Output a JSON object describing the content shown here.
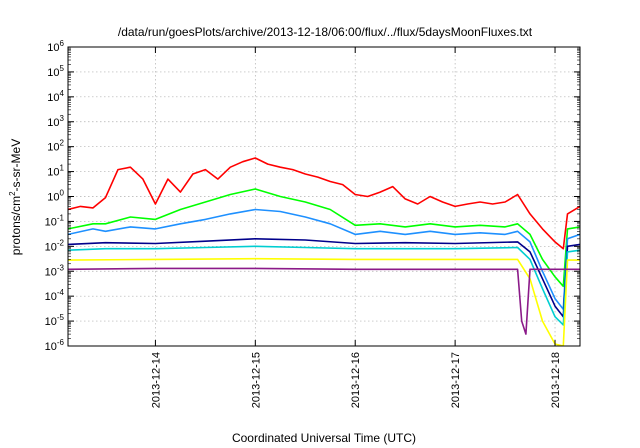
{
  "chart_data": {
    "type": "line",
    "title": "/data/run/goesPlots/archive/2013-12-18/06:00/flux/../flux/5daysMoonFluxes.txt",
    "xlabel": "Coordinated Universal Time (UTC)",
    "ylabel_base": "protons/cm",
    "ylabel_sup": "2",
    "ylabel_tail": "-s-sr-MeV",
    "xlim": [
      "2013-12-13T03:00",
      "2013-12-18T06:00"
    ],
    "x_ticks": [
      "2013-12-14",
      "2013-12-15",
      "2013-12-16",
      "2013-12-17",
      "2013-12-18"
    ],
    "ylog": true,
    "ylim": [
      1e-06,
      1000000.0
    ],
    "y_tick_exponents": [
      -6,
      -5,
      -4,
      -3,
      -2,
      -1,
      0,
      1,
      2,
      3,
      4,
      5,
      6
    ],
    "y_tick_base": "10",
    "grid": true,
    "series": [
      {
        "color": "#ff0000",
        "points": [
          [
            "2013-12-13T03:00",
            0.3
          ],
          [
            "2013-12-13T06:00",
            0.4
          ],
          [
            "2013-12-13T09:00",
            0.35
          ],
          [
            "2013-12-13T12:00",
            0.9
          ],
          [
            "2013-12-13T15:00",
            12
          ],
          [
            "2013-12-13T18:00",
            15
          ],
          [
            "2013-12-13T21:00",
            5
          ],
          [
            "2013-12-14T00:00",
            0.5
          ],
          [
            "2013-12-14T03:00",
            5
          ],
          [
            "2013-12-14T06:00",
            1.5
          ],
          [
            "2013-12-14T09:00",
            8
          ],
          [
            "2013-12-14T12:00",
            12
          ],
          [
            "2013-12-14T15:00",
            5
          ],
          [
            "2013-12-14T18:00",
            15
          ],
          [
            "2013-12-14T21:00",
            25
          ],
          [
            "2013-12-15T00:00",
            35
          ],
          [
            "2013-12-15T03:00",
            20
          ],
          [
            "2013-12-15T06:00",
            15
          ],
          [
            "2013-12-15T09:00",
            12
          ],
          [
            "2013-12-15T12:00",
            8
          ],
          [
            "2013-12-15T15:00",
            6
          ],
          [
            "2013-12-15T18:00",
            4
          ],
          [
            "2013-12-15T21:00",
            3
          ],
          [
            "2013-12-16T00:00",
            1.2
          ],
          [
            "2013-12-16T03:00",
            1.0
          ],
          [
            "2013-12-16T06:00",
            1.5
          ],
          [
            "2013-12-16T09:00",
            2.5
          ],
          [
            "2013-12-16T12:00",
            0.8
          ],
          [
            "2013-12-16T15:00",
            0.5
          ],
          [
            "2013-12-16T18:00",
            1.0
          ],
          [
            "2013-12-16T21:00",
            0.6
          ],
          [
            "2013-12-17T00:00",
            0.4
          ],
          [
            "2013-12-17T03:00",
            0.5
          ],
          [
            "2013-12-17T06:00",
            0.6
          ],
          [
            "2013-12-17T09:00",
            0.5
          ],
          [
            "2013-12-17T12:00",
            0.6
          ],
          [
            "2013-12-17T15:00",
            1.2
          ],
          [
            "2013-12-17T18:00",
            0.2
          ],
          [
            "2013-12-17T21:00",
            0.05
          ],
          [
            "2013-12-18T00:00",
            0.015
          ],
          [
            "2013-12-18T02:00",
            0.008
          ],
          [
            "2013-12-18T03:00",
            0.2
          ],
          [
            "2013-12-18T06:00",
            0.4
          ]
        ]
      },
      {
        "color": "#00ff00",
        "points": [
          [
            "2013-12-13T03:00",
            0.05
          ],
          [
            "2013-12-13T09:00",
            0.08
          ],
          [
            "2013-12-13T12:00",
            0.08
          ],
          [
            "2013-12-13T18:00",
            0.15
          ],
          [
            "2013-12-14T00:00",
            0.12
          ],
          [
            "2013-12-14T06:00",
            0.3
          ],
          [
            "2013-12-14T12:00",
            0.6
          ],
          [
            "2013-12-14T18:00",
            1.2
          ],
          [
            "2013-12-15T00:00",
            2
          ],
          [
            "2013-12-15T06:00",
            1.0
          ],
          [
            "2013-12-15T12:00",
            0.6
          ],
          [
            "2013-12-15T18:00",
            0.3
          ],
          [
            "2013-12-16T00:00",
            0.07
          ],
          [
            "2013-12-16T06:00",
            0.08
          ],
          [
            "2013-12-16T12:00",
            0.06
          ],
          [
            "2013-12-16T18:00",
            0.08
          ],
          [
            "2013-12-17T00:00",
            0.06
          ],
          [
            "2013-12-17T06:00",
            0.07
          ],
          [
            "2013-12-17T12:00",
            0.06
          ],
          [
            "2013-12-17T15:00",
            0.08
          ],
          [
            "2013-12-17T18:00",
            0.03
          ],
          [
            "2013-12-17T21:00",
            0.003
          ],
          [
            "2013-12-18T00:00",
            0.0006
          ],
          [
            "2013-12-18T02:00",
            0.00025
          ],
          [
            "2013-12-18T03:00",
            0.05
          ],
          [
            "2013-12-18T06:00",
            0.06
          ]
        ]
      },
      {
        "color": "#1e90ff",
        "points": [
          [
            "2013-12-13T03:00",
            0.03
          ],
          [
            "2013-12-13T09:00",
            0.05
          ],
          [
            "2013-12-13T12:00",
            0.04
          ],
          [
            "2013-12-13T18:00",
            0.06
          ],
          [
            "2013-12-14T00:00",
            0.05
          ],
          [
            "2013-12-14T06:00",
            0.08
          ],
          [
            "2013-12-14T12:00",
            0.12
          ],
          [
            "2013-12-14T18:00",
            0.2
          ],
          [
            "2013-12-15T00:00",
            0.3
          ],
          [
            "2013-12-15T06:00",
            0.25
          ],
          [
            "2013-12-15T12:00",
            0.15
          ],
          [
            "2013-12-15T18:00",
            0.08
          ],
          [
            "2013-12-16T00:00",
            0.03
          ],
          [
            "2013-12-16T06:00",
            0.04
          ],
          [
            "2013-12-16T12:00",
            0.03
          ],
          [
            "2013-12-16T18:00",
            0.04
          ],
          [
            "2013-12-17T00:00",
            0.03
          ],
          [
            "2013-12-17T06:00",
            0.035
          ],
          [
            "2013-12-17T12:00",
            0.03
          ],
          [
            "2013-12-17T15:00",
            0.04
          ],
          [
            "2013-12-17T18:00",
            0.015
          ],
          [
            "2013-12-17T21:00",
            0.001
          ],
          [
            "2013-12-18T00:00",
            8e-05
          ],
          [
            "2013-12-18T02:00",
            3e-05
          ],
          [
            "2013-12-18T03:00",
            0.02
          ],
          [
            "2013-12-18T06:00",
            0.03
          ]
        ]
      },
      {
        "color": "#00008b",
        "points": [
          [
            "2013-12-13T03:00",
            0.012
          ],
          [
            "2013-12-13T12:00",
            0.014
          ],
          [
            "2013-12-14T00:00",
            0.013
          ],
          [
            "2013-12-14T12:00",
            0.016
          ],
          [
            "2013-12-15T00:00",
            0.02
          ],
          [
            "2013-12-15T12:00",
            0.018
          ],
          [
            "2013-12-16T00:00",
            0.013
          ],
          [
            "2013-12-16T12:00",
            0.014
          ],
          [
            "2013-12-17T00:00",
            0.013
          ],
          [
            "2013-12-17T15:00",
            0.015
          ],
          [
            "2013-12-17T18:00",
            0.006
          ],
          [
            "2013-12-17T21:00",
            0.0005
          ],
          [
            "2013-12-18T00:00",
            4e-05
          ],
          [
            "2013-12-18T02:00",
            1.5e-05
          ],
          [
            "2013-12-18T03:00",
            0.01
          ],
          [
            "2013-12-18T06:00",
            0.012
          ]
        ]
      },
      {
        "color": "#00ced1",
        "points": [
          [
            "2013-12-13T03:00",
            0.007
          ],
          [
            "2013-12-13T12:00",
            0.008
          ],
          [
            "2013-12-14T00:00",
            0.008
          ],
          [
            "2013-12-14T12:00",
            0.009
          ],
          [
            "2013-12-15T00:00",
            0.01
          ],
          [
            "2013-12-15T12:00",
            0.009
          ],
          [
            "2013-12-16T00:00",
            0.008
          ],
          [
            "2013-12-16T12:00",
            0.008
          ],
          [
            "2013-12-17T00:00",
            0.008
          ],
          [
            "2013-12-17T15:00",
            0.009
          ],
          [
            "2013-12-17T18:00",
            0.003
          ],
          [
            "2013-12-17T21:00",
            0.0002
          ],
          [
            "2013-12-18T00:00",
            1.5e-05
          ],
          [
            "2013-12-18T02:00",
            7e-06
          ],
          [
            "2013-12-18T03:00",
            0.006
          ],
          [
            "2013-12-18T06:00",
            0.007
          ]
        ]
      },
      {
        "color": "#ffff00",
        "points": [
          [
            "2013-12-13T03:00",
            0.0028
          ],
          [
            "2013-12-14T00:00",
            0.003
          ],
          [
            "2013-12-15T00:00",
            0.0032
          ],
          [
            "2013-12-16T00:00",
            0.003
          ],
          [
            "2013-12-17T00:00",
            0.003
          ],
          [
            "2013-12-17T15:00",
            0.003
          ],
          [
            "2013-12-17T18:00",
            0.0005
          ],
          [
            "2013-12-17T21:00",
            1e-05
          ],
          [
            "2013-12-18T00:00",
            1.2e-06
          ],
          [
            "2013-12-18T02:00",
            1e-06
          ],
          [
            "2013-12-18T03:00",
            0.0028
          ],
          [
            "2013-12-18T06:00",
            0.0028
          ]
        ]
      },
      {
        "color": "#8b1a89",
        "points": [
          [
            "2013-12-13T03:00",
            0.0012
          ],
          [
            "2013-12-14T00:00",
            0.0013
          ],
          [
            "2013-12-15T00:00",
            0.0013
          ],
          [
            "2013-12-16T00:00",
            0.0012
          ],
          [
            "2013-12-17T00:00",
            0.0012
          ],
          [
            "2013-12-17T15:00",
            0.0012
          ],
          [
            "2013-12-17T16:00",
            1e-05
          ],
          [
            "2013-12-17T17:00",
            3e-06
          ],
          [
            "2013-12-17T18:00",
            0.0012
          ],
          [
            "2013-12-18T00:00",
            0.0012
          ],
          [
            "2013-12-18T06:00",
            0.0012
          ]
        ]
      }
    ]
  }
}
